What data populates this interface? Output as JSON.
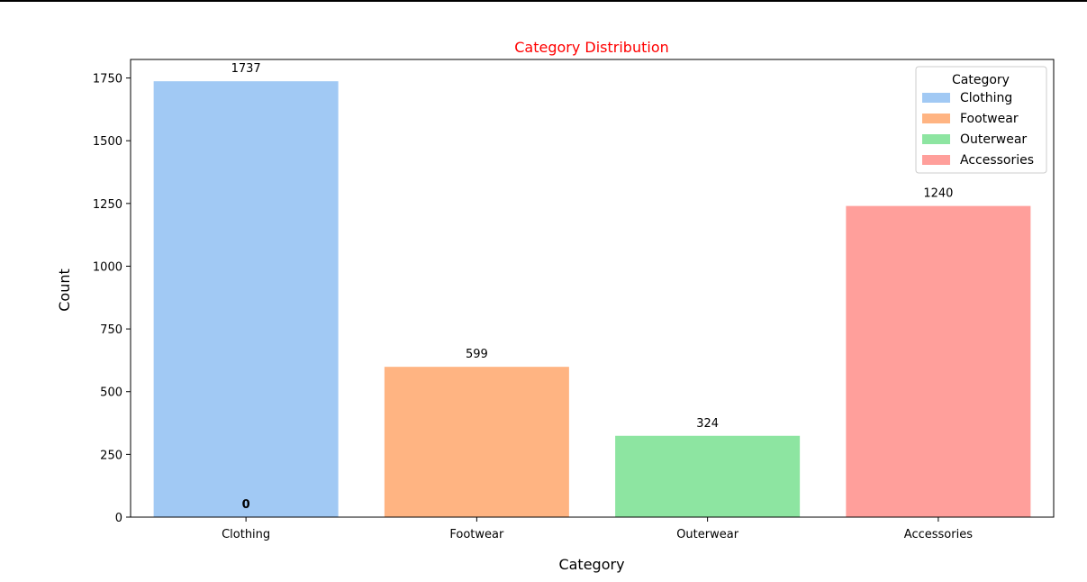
{
  "chart_data": {
    "type": "bar",
    "title": "Category Distribution",
    "xlabel": "Category",
    "ylabel": "Count",
    "categories": [
      "Clothing",
      "Footwear",
      "Outerwear",
      "Accessories"
    ],
    "values": [
      1737,
      599,
      324,
      1240
    ],
    "value_labels": [
      "1737",
      "599",
      "324",
      "1240"
    ],
    "colors": [
      "#a1c9f4",
      "#ffb482",
      "#8de5a1",
      "#ff9f9b"
    ],
    "ylim": [
      0,
      1823.85
    ],
    "yticks": [
      0,
      250,
      500,
      750,
      1000,
      1250,
      1500,
      1750
    ],
    "ytick_labels": [
      "0",
      "250",
      "500",
      "750",
      "1000",
      "1250",
      "1500",
      "1750"
    ],
    "grid": false,
    "legend": {
      "title": "Category",
      "placement": "upper right",
      "entries": [
        "Clothing",
        "Footwear",
        "Outerwear",
        "Accessories"
      ]
    },
    "annotations": [
      {
        "text": "0",
        "category": "Clothing",
        "y": 0,
        "bold": true
      }
    ],
    "title_color": "#ff0000"
  }
}
